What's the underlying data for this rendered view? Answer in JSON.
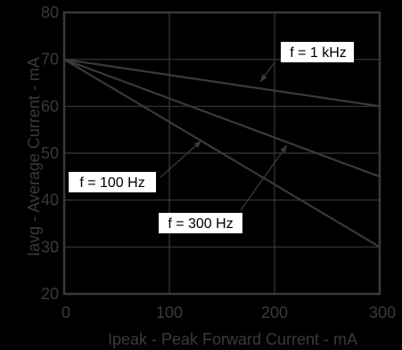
{
  "chart_data": {
    "type": "line",
    "xlabel": "Ipeak - Peak Forward Current - mA",
    "ylabel": "Iavg - Average Current - mA",
    "xlim": [
      0,
      300
    ],
    "ylim": [
      20,
      80
    ],
    "xticks": [
      0,
      100,
      200,
      300
    ],
    "yticks": [
      20,
      30,
      40,
      50,
      60,
      70,
      80
    ],
    "grid": true,
    "series": [
      {
        "name": "f = 1 kHz",
        "x": [
          0,
          300
        ],
        "y": [
          70,
          60
        ]
      },
      {
        "name": "f = 100 Hz",
        "x": [
          0,
          300
        ],
        "y": [
          70,
          45
        ]
      },
      {
        "name": "f = 300 Hz",
        "x": [
          0,
          300
        ],
        "y": [
          70,
          30
        ]
      }
    ]
  },
  "colors": {
    "background": "#000000",
    "plot_area": "#000000",
    "grid": "#3a3a3a",
    "frame": "#3a3a3a",
    "line": "#3a3a3a",
    "label_box": "#ffffff",
    "label_text": "#000000"
  }
}
